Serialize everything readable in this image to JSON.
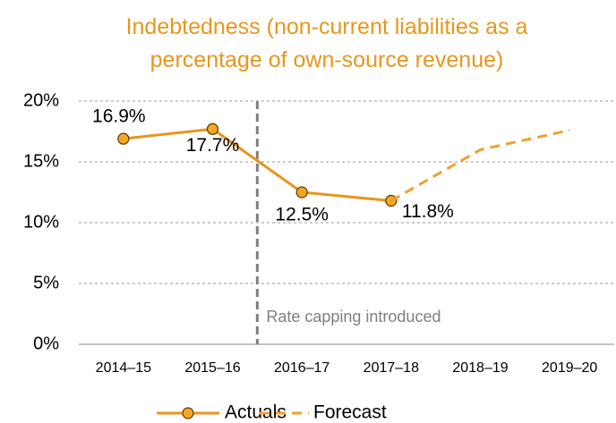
{
  "chart_data": {
    "type": "line",
    "title": "Indebtedness (non-current liabilities as a percentage of own-source revenue)",
    "categories": [
      "2014–15",
      "2015–16",
      "2016–17",
      "2017–18",
      "2018–19",
      "2019–20"
    ],
    "series": [
      {
        "name": "Actuals",
        "color": "#E8961E",
        "values": [
          16.9,
          17.7,
          12.5,
          11.8,
          null,
          null
        ],
        "value_labels": [
          "16.9%",
          "17.7%",
          "12.5%",
          "11.8%",
          null,
          null
        ]
      },
      {
        "name": "Forecast",
        "color": "#F0A030",
        "values": [
          null,
          null,
          null,
          11.8,
          16.0,
          17.6
        ]
      }
    ],
    "ylim": [
      0,
      20
    ],
    "yticks": [
      {
        "value": 0,
        "label": "0%"
      },
      {
        "value": 5,
        "label": "5%"
      },
      {
        "value": 10,
        "label": "10%"
      },
      {
        "value": 15,
        "label": "15%"
      },
      {
        "value": 20,
        "label": "20%"
      }
    ],
    "grid": true,
    "annotation": "Rate capping introduced",
    "legend": "bottom"
  }
}
